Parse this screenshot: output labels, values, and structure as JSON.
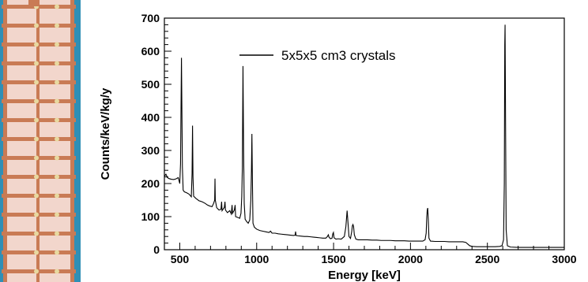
{
  "photo": {
    "icon": "detector-tower-photo",
    "colors": {
      "background": "#2f8fb6",
      "frame": "#c97b55",
      "crystal": "#f2d6cc"
    }
  },
  "chart_data": {
    "type": "line",
    "title": "",
    "xlabel": "Energy [keV]",
    "ylabel": "Counts/keV/kg/y",
    "xlim": [
      400,
      3000
    ],
    "ylim": [
      0,
      700
    ],
    "xticks": [
      500,
      1000,
      1500,
      2000,
      2500,
      3000
    ],
    "yticks": [
      0,
      100,
      200,
      300,
      400,
      500,
      600,
      700
    ],
    "grid": false,
    "legend_position": "top-center",
    "series": [
      {
        "name": "5x5x5 cm3 crystals",
        "color": "#000000",
        "points": [
          [
            400,
            222
          ],
          [
            410,
            228
          ],
          [
            420,
            218
          ],
          [
            430,
            215
          ],
          [
            445,
            213
          ],
          [
            460,
            212
          ],
          [
            475,
            214
          ],
          [
            490,
            218
          ],
          [
            500,
            200
          ],
          [
            505,
            260
          ],
          [
            511,
            580
          ],
          [
            517,
            250
          ],
          [
            522,
            180
          ],
          [
            530,
            175
          ],
          [
            545,
            172
          ],
          [
            560,
            168
          ],
          [
            575,
            160
          ],
          [
            580,
            230
          ],
          [
            583,
            375
          ],
          [
            586,
            220
          ],
          [
            590,
            162
          ],
          [
            605,
            155
          ],
          [
            625,
            148
          ],
          [
            645,
            145
          ],
          [
            665,
            140
          ],
          [
            680,
            135
          ],
          [
            695,
            132
          ],
          [
            710,
            130
          ],
          [
            720,
            140
          ],
          [
            727,
            150
          ],
          [
            729,
            215
          ],
          [
            731,
            150
          ],
          [
            740,
            127
          ],
          [
            755,
            120
          ],
          [
            768,
            122
          ],
          [
            772,
            145
          ],
          [
            775,
            118
          ],
          [
            790,
            128
          ],
          [
            794,
            145
          ],
          [
            797,
            120
          ],
          [
            810,
            112
          ],
          [
            825,
            118
          ],
          [
            835,
            108
          ],
          [
            840,
            135
          ],
          [
            843,
            110
          ],
          [
            855,
            120
          ],
          [
            860,
            135
          ],
          [
            863,
            100
          ],
          [
            875,
            98
          ],
          [
            890,
            95
          ],
          [
            898,
            110
          ],
          [
            903,
            160
          ],
          [
            907,
            250
          ],
          [
            911,
            555
          ],
          [
            915,
            300
          ],
          [
            919,
            140
          ],
          [
            925,
            92
          ],
          [
            935,
            85
          ],
          [
            945,
            80
          ],
          [
            955,
            90
          ],
          [
            962,
            150
          ],
          [
            966,
            240
          ],
          [
            969,
            350
          ],
          [
            972,
            220
          ],
          [
            976,
            80
          ],
          [
            985,
            68
          ],
          [
            1000,
            62
          ],
          [
            1020,
            58
          ],
          [
            1040,
            56
          ],
          [
            1060,
            54
          ],
          [
            1080,
            52
          ],
          [
            1090,
            56
          ],
          [
            1100,
            50
          ],
          [
            1120,
            50
          ],
          [
            1140,
            48
          ],
          [
            1160,
            47
          ],
          [
            1180,
            46
          ],
          [
            1200,
            45
          ],
          [
            1220,
            44
          ],
          [
            1240,
            43
          ],
          [
            1250,
            44
          ],
          [
            1253,
            55
          ],
          [
            1256,
            43
          ],
          [
            1270,
            42
          ],
          [
            1290,
            41
          ],
          [
            1310,
            40
          ],
          [
            1330,
            40
          ],
          [
            1350,
            39
          ],
          [
            1370,
            38
          ],
          [
            1390,
            37
          ],
          [
            1410,
            36
          ],
          [
            1430,
            35
          ],
          [
            1450,
            35
          ],
          [
            1460,
            40
          ],
          [
            1466,
            45
          ],
          [
            1470,
            38
          ],
          [
            1480,
            33
          ],
          [
            1490,
            35
          ],
          [
            1495,
            48
          ],
          [
            1499,
            52
          ],
          [
            1503,
            36
          ],
          [
            1515,
            32
          ],
          [
            1530,
            33
          ],
          [
            1550,
            32
          ],
          [
            1570,
            40
          ],
          [
            1580,
            70
          ],
          [
            1588,
            118
          ],
          [
            1594,
            80
          ],
          [
            1600,
            40
          ],
          [
            1610,
            34
          ],
          [
            1618,
            55
          ],
          [
            1622,
            72
          ],
          [
            1626,
            76
          ],
          [
            1630,
            70
          ],
          [
            1635,
            45
          ],
          [
            1645,
            32
          ],
          [
            1660,
            30
          ],
          [
            1690,
            30
          ],
          [
            1720,
            30
          ],
          [
            1750,
            29
          ],
          [
            1780,
            29
          ],
          [
            1810,
            28
          ],
          [
            1840,
            28
          ],
          [
            1870,
            28
          ],
          [
            1900,
            27
          ],
          [
            1930,
            27
          ],
          [
            1960,
            27
          ],
          [
            1990,
            26
          ],
          [
            2020,
            26
          ],
          [
            2050,
            26
          ],
          [
            2080,
            26
          ],
          [
            2095,
            30
          ],
          [
            2102,
            50
          ],
          [
            2106,
            100
          ],
          [
            2109,
            120
          ],
          [
            2112,
            126
          ],
          [
            2116,
            90
          ],
          [
            2120,
            35
          ],
          [
            2130,
            26
          ],
          [
            2160,
            25
          ],
          [
            2190,
            25
          ],
          [
            2220,
            25
          ],
          [
            2250,
            24
          ],
          [
            2280,
            24
          ],
          [
            2310,
            24
          ],
          [
            2340,
            24
          ],
          [
            2360,
            22
          ],
          [
            2370,
            18
          ],
          [
            2385,
            12
          ],
          [
            2400,
            10
          ],
          [
            2430,
            9
          ],
          [
            2460,
            9
          ],
          [
            2490,
            9
          ],
          [
            2520,
            9
          ],
          [
            2550,
            9
          ],
          [
            2580,
            10
          ],
          [
            2595,
            12
          ],
          [
            2605,
            30
          ],
          [
            2610,
            200
          ],
          [
            2613,
            620
          ],
          [
            2615,
            680
          ],
          [
            2618,
            400
          ],
          [
            2622,
            60
          ],
          [
            2630,
            12
          ],
          [
            2650,
            8
          ],
          [
            2700,
            7
          ],
          [
            2750,
            7
          ],
          [
            2800,
            7
          ],
          [
            2850,
            7
          ],
          [
            2900,
            7
          ],
          [
            2950,
            7
          ],
          [
            3000,
            7
          ]
        ]
      }
    ]
  }
}
